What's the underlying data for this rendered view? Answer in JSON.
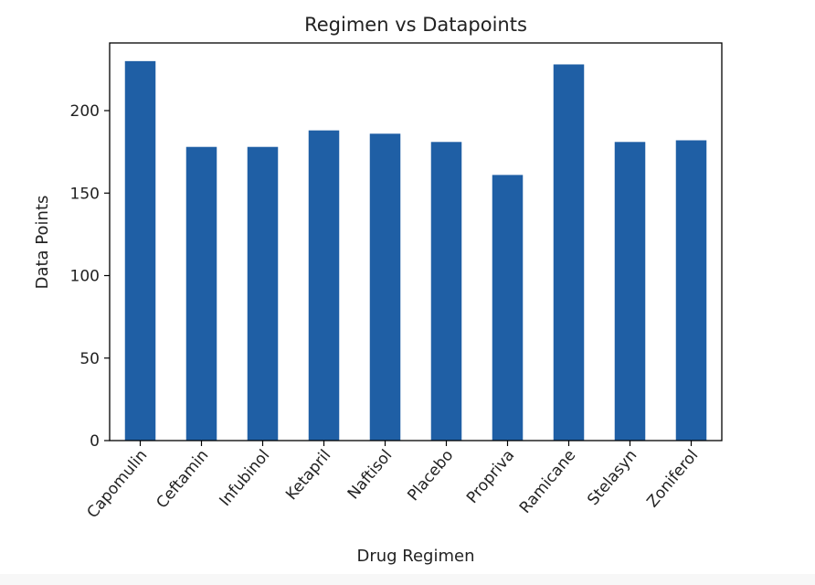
{
  "chart_data": {
    "type": "bar",
    "title": "Regimen vs Datapoints",
    "xlabel": "Drug Regimen",
    "ylabel": "Data Points",
    "categories": [
      "Capomulin",
      "Ceftamin",
      "Infubinol",
      "Ketapril",
      "Naftisol",
      "Placebo",
      "Propriva",
      "Ramicane",
      "Stelasyn",
      "Zoniferol"
    ],
    "values": [
      230,
      178,
      178,
      188,
      186,
      181,
      161,
      228,
      181,
      182
    ],
    "ylim": [
      0,
      241
    ],
    "yticks": [
      0,
      50,
      100,
      150,
      200
    ],
    "bar_color": "#1f5fa5",
    "grid": false,
    "legend": "none"
  }
}
